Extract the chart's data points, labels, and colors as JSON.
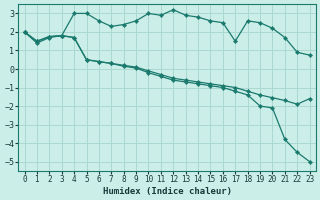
{
  "xlabel": "Humidex (Indice chaleur)",
  "background_color": "#cceee8",
  "grid_color": "#aad8d0",
  "line_color": "#1a7a6e",
  "xlim": [
    -0.5,
    23.5
  ],
  "ylim": [
    -5.5,
    3.5
  ],
  "yticks": [
    -5,
    -4,
    -3,
    -2,
    -1,
    0,
    1,
    2,
    3
  ],
  "xticks": [
    0,
    1,
    2,
    3,
    4,
    5,
    6,
    7,
    8,
    9,
    10,
    11,
    12,
    13,
    14,
    15,
    16,
    17,
    18,
    19,
    20,
    21,
    22,
    23
  ],
  "series": [
    {
      "x": [
        0,
        1,
        2,
        3,
        4,
        5,
        6,
        7,
        8,
        9,
        10,
        11,
        12,
        13,
        14,
        15,
        16,
        17,
        18,
        19,
        20,
        21,
        22,
        23
      ],
      "y": [
        2.0,
        1.4,
        1.7,
        1.8,
        3.0,
        3.0,
        2.6,
        2.3,
        2.4,
        2.6,
        3.0,
        2.9,
        3.2,
        2.9,
        2.8,
        2.6,
        2.5,
        1.5,
        2.6,
        2.5,
        2.2,
        1.7,
        0.9,
        0.75
      ]
    },
    {
      "x": [
        0,
        1,
        2,
        3,
        4,
        5,
        6,
        7,
        8,
        9,
        10,
        11,
        12,
        13,
        14,
        15,
        16,
        17,
        18,
        19,
        20,
        21,
        22,
        23
      ],
      "y": [
        2.0,
        1.5,
        1.75,
        1.8,
        1.7,
        0.5,
        0.4,
        0.3,
        0.2,
        0.1,
        -0.1,
        -0.3,
        -0.5,
        -0.6,
        -0.7,
        -0.8,
        -0.9,
        -1.0,
        -1.2,
        -1.4,
        -1.55,
        -1.7,
        -1.9,
        -1.6
      ]
    },
    {
      "x": [
        0,
        1,
        2,
        3,
        4,
        5,
        6,
        7,
        8,
        9,
        10,
        11,
        12,
        13,
        14,
        15,
        16,
        17,
        18,
        19,
        20,
        21,
        22,
        23
      ],
      "y": [
        2.0,
        1.5,
        1.75,
        1.8,
        1.7,
        0.5,
        0.4,
        0.3,
        0.15,
        0.05,
        -0.2,
        -0.4,
        -0.6,
        -0.7,
        -0.8,
        -0.9,
        -1.0,
        -1.2,
        -1.4,
        -2.0,
        -2.1,
        -3.8,
        -4.5,
        -5.0
      ]
    }
  ]
}
